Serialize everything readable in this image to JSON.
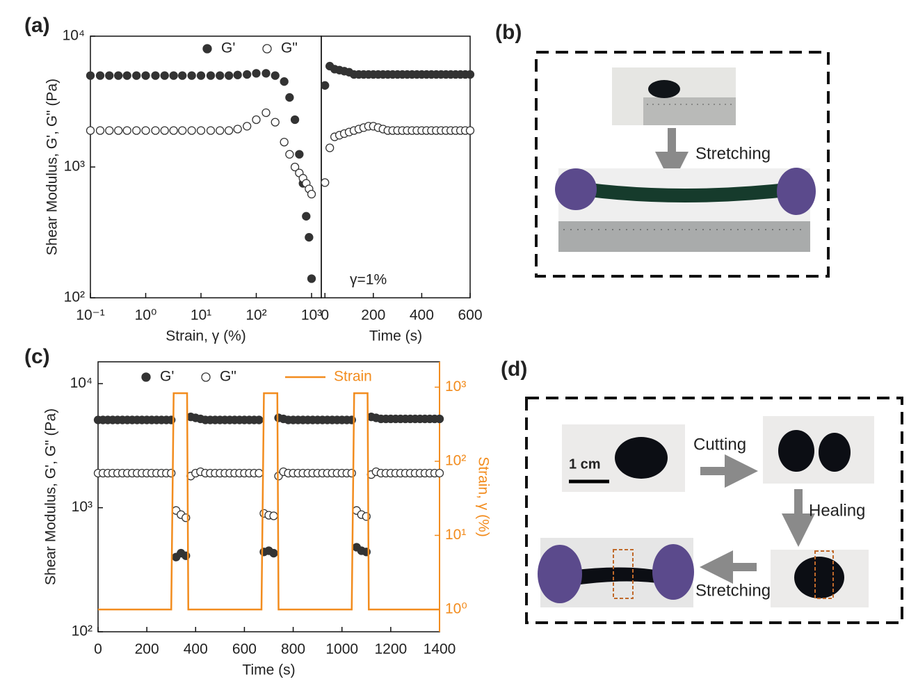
{
  "panels": {
    "a": "(a)",
    "b": "(b)",
    "c": "(c)",
    "d": "(d)"
  },
  "diagram_b": {
    "arrow_label": "Stretching"
  },
  "diagram_d": {
    "scale_bar": "1 cm",
    "steps": [
      "Cutting",
      "Healing",
      "Stretching"
    ]
  },
  "chart_data": [
    {
      "type": "scatter",
      "xlabel": "Strain, γ (%)",
      "ylabel": "Shear Modulus, G', G\" (Pa)",
      "xscale": "log",
      "yscale": "log",
      "xlim": [
        0.1,
        1500
      ],
      "ylim": [
        100,
        10000
      ],
      "xticks": [
        {
          "value": 0.1,
          "label": "10⁻¹"
        },
        {
          "value": 1,
          "label": "10⁰"
        },
        {
          "value": 10,
          "label": "10¹"
        },
        {
          "value": 100,
          "label": "10²"
        },
        {
          "value": 1000,
          "label": "10³"
        }
      ],
      "yticks": [
        {
          "value": 100,
          "label": "10²"
        },
        {
          "value": 1000,
          "label": "10³"
        },
        {
          "value": 10000,
          "label": "10⁴"
        }
      ],
      "legend": "top",
      "x": [
        0.1,
        0.15,
        0.22,
        0.32,
        0.46,
        0.68,
        1,
        1.5,
        2.2,
        3.2,
        4.6,
        6.8,
        10,
        15,
        22,
        32,
        46,
        68,
        100,
        150,
        220,
        320,
        400,
        500,
        600,
        700,
        800,
        900,
        1000
      ],
      "series": [
        {
          "name": "G'",
          "color": "#333333",
          "filled": true,
          "values": [
            5000,
            5000,
            5000,
            5000,
            5000,
            5000,
            5000,
            5000,
            5000,
            5000,
            5000,
            5000,
            5000,
            5000,
            5000,
            5000,
            5050,
            5100,
            5200,
            5200,
            5000,
            4500,
            3400,
            2300,
            1250,
            750,
            420,
            290,
            140
          ]
        },
        {
          "name": "G\"",
          "color": "#333333",
          "filled": false,
          "values": [
            1900,
            1900,
            1900,
            1900,
            1900,
            1900,
            1900,
            1900,
            1900,
            1900,
            1900,
            1900,
            1900,
            1900,
            1900,
            1900,
            1950,
            2050,
            2300,
            2600,
            2200,
            1550,
            1250,
            1000,
            900,
            820,
            750,
            680,
            620
          ]
        }
      ]
    },
    {
      "type": "scatter",
      "xlabel": "Time (s)",
      "annotation": "γ=1%",
      "yscale": "log",
      "xlim": [
        -15,
        600
      ],
      "ylim": [
        100,
        10000
      ],
      "xticks": [
        0,
        200,
        400,
        600
      ],
      "x": [
        0,
        20,
        40,
        60,
        80,
        100,
        120,
        140,
        160,
        180,
        200,
        220,
        240,
        260,
        280,
        300,
        320,
        340,
        360,
        380,
        400,
        420,
        440,
        460,
        480,
        500,
        520,
        540,
        560,
        580,
        600
      ],
      "series": [
        {
          "color": "#333333",
          "filled": true,
          "values": [
            4200,
            5900,
            5600,
            5500,
            5400,
            5300,
            5100,
            5100,
            5100,
            5100,
            5100,
            5100,
            5100,
            5100,
            5100,
            5100,
            5100,
            5100,
            5100,
            5100,
            5100,
            5100,
            5100,
            5100,
            5100,
            5100,
            5100,
            5100,
            5100,
            5100,
            5100
          ]
        },
        {
          "color": "#333333",
          "filled": false,
          "values": [
            760,
            1400,
            1700,
            1750,
            1800,
            1850,
            1900,
            1950,
            2000,
            2050,
            2050,
            2000,
            1950,
            1900,
            1900,
            1900,
            1900,
            1900,
            1900,
            1900,
            1900,
            1900,
            1900,
            1900,
            1900,
            1900,
            1900,
            1900,
            1900,
            1900,
            1900
          ]
        }
      ]
    },
    {
      "type": "scatter",
      "xlabel": "Time (s)",
      "ylabel": "Shear Modulus, G', G\" (Pa)",
      "y2label": "Strain, γ (%)",
      "yscale": "log",
      "y2scale": "log",
      "y2color": "#f28c1e",
      "xlim": [
        0,
        1400
      ],
      "ylim": [
        100,
        15000
      ],
      "y2lim": [
        0.5,
        2200
      ],
      "xticks": [
        0,
        200,
        400,
        600,
        800,
        1000,
        1200,
        1400
      ],
      "yticks": [
        {
          "value": 100,
          "label": "10²"
        },
        {
          "value": 1000,
          "label": "10³"
        },
        {
          "value": 10000,
          "label": "10⁴"
        }
      ],
      "y2ticks": [
        {
          "value": 1,
          "label": "10⁰"
        },
        {
          "value": 10,
          "label": "10¹"
        },
        {
          "value": 100,
          "label": "10²"
        },
        {
          "value": 1000,
          "label": "10³"
        }
      ],
      "legend": "top",
      "x": [
        0,
        20,
        40,
        60,
        80,
        100,
        120,
        140,
        160,
        180,
        200,
        220,
        240,
        260,
        280,
        300,
        320,
        340,
        360,
        380,
        400,
        420,
        440,
        460,
        480,
        500,
        520,
        540,
        560,
        580,
        600,
        620,
        640,
        660,
        680,
        700,
        720,
        740,
        760,
        780,
        800,
        820,
        840,
        860,
        880,
        900,
        920,
        940,
        960,
        980,
        1000,
        1020,
        1040,
        1060,
        1080,
        1100,
        1120,
        1140,
        1160,
        1180,
        1200,
        1220,
        1240,
        1260,
        1280,
        1300,
        1320,
        1340,
        1360,
        1380,
        1400
      ],
      "series": [
        {
          "name": "G'",
          "color": "#333333",
          "filled": true,
          "values": [
            5100,
            5100,
            5100,
            5100,
            5100,
            5100,
            5100,
            5100,
            5100,
            5100,
            5100,
            5100,
            5100,
            5100,
            5100,
            5100,
            400,
            430,
            410,
            5400,
            5300,
            5200,
            5100,
            5100,
            5100,
            5100,
            5100,
            5100,
            5100,
            5100,
            5100,
            5100,
            5100,
            5100,
            440,
            450,
            430,
            5300,
            5200,
            5100,
            5100,
            5100,
            5100,
            5100,
            5100,
            5100,
            5100,
            5100,
            5100,
            5100,
            5100,
            5100,
            5100,
            480,
            450,
            440,
            5400,
            5300,
            5200,
            5200,
            5200,
            5200,
            5200,
            5200,
            5200,
            5200,
            5200,
            5200,
            5200,
            5200,
            5200
          ]
        },
        {
          "name": "G\"",
          "color": "#333333",
          "filled": false,
          "values": [
            1900,
            1900,
            1900,
            1900,
            1900,
            1900,
            1900,
            1900,
            1900,
            1900,
            1900,
            1900,
            1900,
            1900,
            1900,
            1900,
            950,
            880,
            830,
            1800,
            1900,
            1950,
            1900,
            1900,
            1900,
            1900,
            1900,
            1900,
            1900,
            1900,
            1900,
            1900,
            1900,
            1900,
            900,
            870,
            860,
            1800,
            1950,
            1900,
            1900,
            1900,
            1900,
            1900,
            1900,
            1900,
            1900,
            1900,
            1900,
            1900,
            1900,
            1900,
            1900,
            950,
            880,
            850,
            1850,
            1950,
            1900,
            1900,
            1900,
            1900,
            1900,
            1900,
            1900,
            1900,
            1900,
            1900,
            1900,
            1900,
            1900
          ]
        },
        {
          "name": "Strain",
          "color": "#f28c1e",
          "style": "line",
          "axis": "y2",
          "x": [
            0,
            300,
            310,
            365,
            370,
            670,
            680,
            735,
            740,
            1040,
            1050,
            1105,
            1110,
            1400
          ],
          "values": [
            1,
            1,
            830,
            830,
            1,
            1,
            830,
            830,
            1,
            1,
            830,
            830,
            1,
            1
          ]
        }
      ]
    }
  ]
}
